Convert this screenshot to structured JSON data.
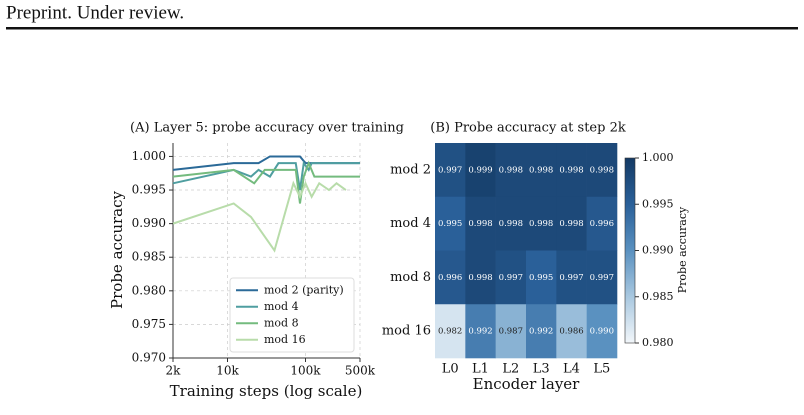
{
  "header": {
    "title": "Preprint. Under review."
  },
  "chart_data": [
    {
      "type": "line",
      "title": "(A) Layer 5: probe accuracy over training",
      "x_label": "Training steps (log scale)",
      "y_label": "Probe accuracy",
      "x_scale": "log",
      "grid": true,
      "legend": "lower right",
      "xlim": [
        2000,
        500000
      ],
      "xticks": [
        {
          "value": 2000,
          "label": "2k"
        },
        {
          "value": 10000,
          "label": "10k"
        },
        {
          "value": 100000,
          "label": "100k"
        },
        {
          "value": 500000,
          "label": "500k"
        }
      ],
      "ylim": [
        0.97,
        1.002
      ],
      "yticks": [
        {
          "value": 0.97,
          "label": "0.970"
        },
        {
          "value": 0.975,
          "label": "0.975"
        },
        {
          "value": 0.98,
          "label": "0.980"
        },
        {
          "value": 0.985,
          "label": "0.985"
        },
        {
          "value": 0.99,
          "label": "0.990"
        },
        {
          "value": 0.995,
          "label": "0.995"
        },
        {
          "value": 1.0,
          "label": "1.000"
        }
      ],
      "series": [
        {
          "name": "mod 2 (parity)",
          "color": "#2b6a98",
          "x": [
            2000,
            12000,
            25000,
            35000,
            85000,
            100000,
            500000
          ],
          "values": [
            0.998,
            0.999,
            0.999,
            1.0,
            1.0,
            0.999,
            0.999
          ]
        },
        {
          "name": "mod 4",
          "color": "#4f9ea0",
          "x": [
            2000,
            12000,
            20000,
            25000,
            35000,
            45000,
            75000,
            85000,
            95000,
            110000,
            120000,
            500000
          ],
          "values": [
            0.996,
            0.998,
            0.997,
            0.998,
            0.997,
            0.999,
            0.999,
            0.995,
            0.999,
            0.998,
            0.999,
            0.999
          ]
        },
        {
          "name": "mod 8",
          "color": "#74bb7e",
          "x": [
            2000,
            12000,
            22000,
            30000,
            75000,
            85000,
            95000,
            110000,
            130000,
            500000
          ],
          "values": [
            0.997,
            0.998,
            0.996,
            0.998,
            0.998,
            0.993,
            0.997,
            0.999,
            0.997,
            0.997
          ]
        },
        {
          "name": "mod 16",
          "color": "#b8dcaa",
          "x": [
            2000,
            12000,
            20000,
            40000,
            70000,
            85000,
            100000,
            120000,
            150000,
            200000,
            250000,
            330000
          ],
          "values": [
            0.99,
            0.993,
            0.991,
            0.986,
            0.996,
            0.994,
            0.996,
            0.994,
            0.996,
            0.995,
            0.996,
            0.995
          ]
        }
      ]
    },
    {
      "type": "heatmap",
      "title": "(B) Probe accuracy at step 2k",
      "x_label": "Encoder layer",
      "colorbar_label": "Probe accuracy",
      "categories": [
        "L0",
        "L1",
        "L2",
        "L3",
        "L4",
        "L5"
      ],
      "rows": [
        "mod 2",
        "mod 4",
        "mod 8",
        "mod 16"
      ],
      "values": [
        [
          0.997,
          0.999,
          0.998,
          0.998,
          0.998,
          0.998
        ],
        [
          0.995,
          0.998,
          0.998,
          0.998,
          0.998,
          0.996
        ],
        [
          0.996,
          0.998,
          0.997,
          0.995,
          0.997,
          0.997
        ],
        [
          0.982,
          0.992,
          0.987,
          0.992,
          0.986,
          0.99
        ]
      ],
      "value_labels": [
        [
          "0.997",
          "0.999",
          "0.998",
          "0.998",
          "0.998",
          "0.998"
        ],
        [
          "0.995",
          "0.998",
          "0.998",
          "0.998",
          "0.998",
          "0.996"
        ],
        [
          "0.996",
          "0.998",
          "0.997",
          "0.995",
          "0.997",
          "0.997"
        ],
        [
          "0.982",
          "0.992",
          "0.987",
          "0.992",
          "0.986",
          "0.990"
        ]
      ],
      "colormap": [
        "#f2f6fa",
        "#a9c8e0",
        "#5a91c0",
        "#2a6099",
        "#143a64"
      ],
      "clim": [
        0.98,
        1.0
      ],
      "cticks": [
        {
          "value": 0.98,
          "label": "0.980"
        },
        {
          "value": 0.985,
          "label": "0.985"
        },
        {
          "value": 0.99,
          "label": "0.990"
        },
        {
          "value": 0.995,
          "label": "0.995"
        },
        {
          "value": 1.0,
          "label": "1.000"
        }
      ]
    }
  ]
}
